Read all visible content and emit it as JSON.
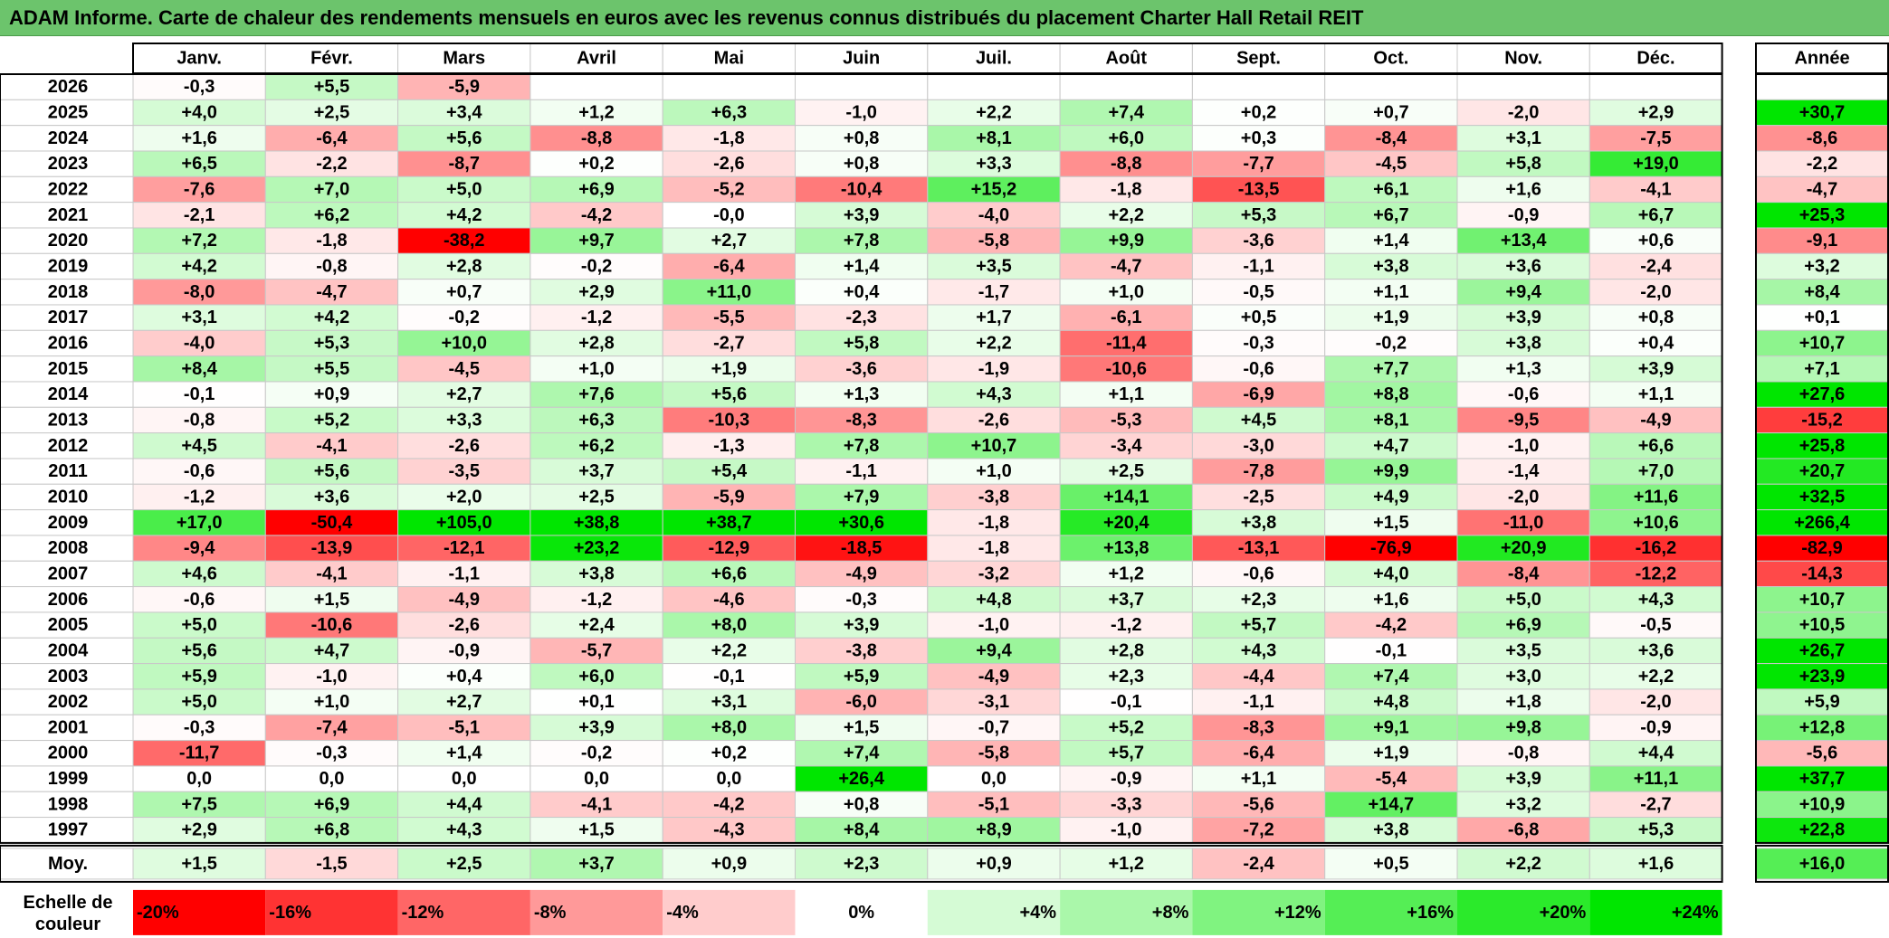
{
  "title": "ADAM Informe. Carte de chaleur des rendements mensuels en euros avec les revenus connus distribués du placement Charter Hall Retail REIT",
  "chart_data": {
    "type": "heatmap",
    "title": "ADAM Informe. Carte de chaleur des rendements mensuels en euros avec les revenus connus distribués du placement Charter Hall Retail REIT",
    "months": [
      "Janv.",
      "Févr.",
      "Mars",
      "Avril",
      "Mai",
      "Juin",
      "Juil.",
      "Août",
      "Sept.",
      "Oct.",
      "Nov.",
      "Déc."
    ],
    "year_header": "Année",
    "rows": [
      {
        "year": "2026",
        "values": [
          "-0,3",
          "+5,5",
          "-5,9",
          "",
          "",
          "",
          "",
          "",
          "",
          "",
          "",
          ""
        ],
        "annual": ""
      },
      {
        "year": "2025",
        "values": [
          "+4,0",
          "+2,5",
          "+3,4",
          "+1,2",
          "+6,3",
          "-1,0",
          "+2,2",
          "+7,4",
          "+0,2",
          "+0,7",
          "-2,0",
          "+2,9"
        ],
        "annual": "+30,7"
      },
      {
        "year": "2024",
        "values": [
          "+1,6",
          "-6,4",
          "+5,6",
          "-8,8",
          "-1,8",
          "+0,8",
          "+8,1",
          "+6,0",
          "+0,3",
          "-8,4",
          "+3,1",
          "-7,5"
        ],
        "annual": "-8,6"
      },
      {
        "year": "2023",
        "values": [
          "+6,5",
          "-2,2",
          "-8,7",
          "+0,2",
          "-2,6",
          "+0,8",
          "+3,3",
          "-8,8",
          "-7,7",
          "-4,5",
          "+5,8",
          "+19,0"
        ],
        "annual": "-2,2"
      },
      {
        "year": "2022",
        "values": [
          "-7,6",
          "+7,0",
          "+5,0",
          "+6,9",
          "-5,2",
          "-10,4",
          "+15,2",
          "-1,8",
          "-13,5",
          "+6,1",
          "+1,6",
          "-4,1"
        ],
        "annual": "-4,7"
      },
      {
        "year": "2021",
        "values": [
          "-2,1",
          "+6,2",
          "+4,2",
          "-4,2",
          "-0,0",
          "+3,9",
          "-4,0",
          "+2,2",
          "+5,3",
          "+6,7",
          "-0,9",
          "+6,7"
        ],
        "annual": "+25,3"
      },
      {
        "year": "2020",
        "values": [
          "+7,2",
          "-1,8",
          "-38,2",
          "+9,7",
          "+2,7",
          "+7,8",
          "-5,8",
          "+9,9",
          "-3,6",
          "+1,4",
          "+13,4",
          "+0,6"
        ],
        "annual": "-9,1"
      },
      {
        "year": "2019",
        "values": [
          "+4,2",
          "-0,8",
          "+2,8",
          "-0,2",
          "-6,4",
          "+1,4",
          "+3,5",
          "-4,7",
          "-1,1",
          "+3,8",
          "+3,6",
          "-2,4"
        ],
        "annual": "+3,2"
      },
      {
        "year": "2018",
        "values": [
          "-8,0",
          "-4,7",
          "+0,7",
          "+2,9",
          "+11,0",
          "+0,4",
          "-1,7",
          "+1,0",
          "-0,5",
          "+1,1",
          "+9,4",
          "-2,0"
        ],
        "annual": "+8,4"
      },
      {
        "year": "2017",
        "values": [
          "+3,1",
          "+4,2",
          "-0,2",
          "-1,2",
          "-5,5",
          "-2,3",
          "+1,7",
          "-6,1",
          "+0,5",
          "+1,9",
          "+3,9",
          "+0,8"
        ],
        "annual": "+0,1"
      },
      {
        "year": "2016",
        "values": [
          "-4,0",
          "+5,3",
          "+10,0",
          "+2,8",
          "-2,7",
          "+5,8",
          "+2,2",
          "-11,4",
          "-0,3",
          "-0,2",
          "+3,8",
          "+0,4"
        ],
        "annual": "+10,7"
      },
      {
        "year": "2015",
        "values": [
          "+8,4",
          "+5,5",
          "-4,5",
          "+1,0",
          "+1,9",
          "-3,6",
          "-1,9",
          "-10,6",
          "-0,6",
          "+7,7",
          "+1,3",
          "+3,9"
        ],
        "annual": "+7,1"
      },
      {
        "year": "2014",
        "values": [
          "-0,1",
          "+0,9",
          "+2,7",
          "+7,6",
          "+5,6",
          "+1,3",
          "+4,3",
          "+1,1",
          "-6,9",
          "+8,8",
          "-0,6",
          "+1,1"
        ],
        "annual": "+27,6"
      },
      {
        "year": "2013",
        "values": [
          "-0,8",
          "+5,2",
          "+3,3",
          "+6,3",
          "-10,3",
          "-8,3",
          "-2,6",
          "-5,3",
          "+4,5",
          "+8,1",
          "-9,5",
          "-4,9"
        ],
        "annual": "-15,2"
      },
      {
        "year": "2012",
        "values": [
          "+4,5",
          "-4,1",
          "-2,6",
          "+6,2",
          "-1,3",
          "+7,8",
          "+10,7",
          "-3,4",
          "-3,0",
          "+4,7",
          "-1,0",
          "+6,6"
        ],
        "annual": "+25,8"
      },
      {
        "year": "2011",
        "values": [
          "-0,6",
          "+5,6",
          "-3,5",
          "+3,7",
          "+5,4",
          "-1,1",
          "+1,0",
          "+2,5",
          "-7,8",
          "+9,9",
          "-1,4",
          "+7,0"
        ],
        "annual": "+20,7"
      },
      {
        "year": "2010",
        "values": [
          "-1,2",
          "+3,6",
          "+2,0",
          "+2,5",
          "-5,9",
          "+7,9",
          "-3,8",
          "+14,1",
          "-2,5",
          "+4,9",
          "-2,0",
          "+11,6"
        ],
        "annual": "+32,5"
      },
      {
        "year": "2009",
        "values": [
          "+17,0",
          "-50,4",
          "+105,0",
          "+38,8",
          "+38,7",
          "+30,6",
          "-1,8",
          "+20,4",
          "+3,8",
          "+1,5",
          "-11,0",
          "+10,6"
        ],
        "annual": "+266,4"
      },
      {
        "year": "2008",
        "values": [
          "-9,4",
          "-13,9",
          "-12,1",
          "+23,2",
          "-12,9",
          "-18,5",
          "-1,8",
          "+13,8",
          "-13,1",
          "-76,9",
          "+20,9",
          "-16,2"
        ],
        "annual": "-82,9"
      },
      {
        "year": "2007",
        "values": [
          "+4,6",
          "-4,1",
          "-1,1",
          "+3,8",
          "+6,6",
          "-4,9",
          "-3,2",
          "+1,2",
          "-0,6",
          "+4,0",
          "-8,4",
          "-12,2"
        ],
        "annual": "-14,3"
      },
      {
        "year": "2006",
        "values": [
          "-0,6",
          "+1,5",
          "-4,9",
          "-1,2",
          "-4,6",
          "-0,3",
          "+4,8",
          "+3,7",
          "+2,3",
          "+1,6",
          "+5,0",
          "+4,3"
        ],
        "annual": "+10,7"
      },
      {
        "year": "2005",
        "values": [
          "+5,0",
          "-10,6",
          "-2,6",
          "+2,4",
          "+8,0",
          "+3,9",
          "-1,0",
          "-1,2",
          "+5,7",
          "-4,2",
          "+6,9",
          "-0,5"
        ],
        "annual": "+10,5"
      },
      {
        "year": "2004",
        "values": [
          "+5,6",
          "+4,7",
          "-0,9",
          "-5,7",
          "+2,2",
          "-3,8",
          "+9,4",
          "+2,8",
          "+4,3",
          "-0,1",
          "+3,5",
          "+3,6"
        ],
        "annual": "+26,7"
      },
      {
        "year": "2003",
        "values": [
          "+5,9",
          "-1,0",
          "+0,4",
          "+6,0",
          "-0,1",
          "+5,9",
          "-4,9",
          "+2,3",
          "-4,4",
          "+7,4",
          "+3,0",
          "+2,2"
        ],
        "annual": "+23,9"
      },
      {
        "year": "2002",
        "values": [
          "+5,0",
          "+1,0",
          "+2,7",
          "+0,1",
          "+3,1",
          "-6,0",
          "-3,1",
          "-0,1",
          "-1,1",
          "+4,8",
          "+1,8",
          "-2,0"
        ],
        "annual": "+5,9"
      },
      {
        "year": "2001",
        "values": [
          "-0,3",
          "-7,4",
          "-5,1",
          "+3,9",
          "+8,0",
          "+1,5",
          "-0,7",
          "+5,2",
          "-8,3",
          "+9,1",
          "+9,8",
          "-0,9"
        ],
        "annual": "+12,8"
      },
      {
        "year": "2000",
        "values": [
          "-11,7",
          "-0,3",
          "+1,4",
          "-0,2",
          "+0,2",
          "+7,4",
          "-5,8",
          "+5,7",
          "-6,4",
          "+1,9",
          "-0,8",
          "+4,4"
        ],
        "annual": "-5,6"
      },
      {
        "year": "1999",
        "values": [
          "0,0",
          "0,0",
          "0,0",
          "0,0",
          "0,0",
          "+26,4",
          "0,0",
          "-0,9",
          "+1,1",
          "-5,4",
          "+3,9",
          "+11,1"
        ],
        "annual": "+37,7"
      },
      {
        "year": "1998",
        "values": [
          "+7,5",
          "+6,9",
          "+4,4",
          "-4,1",
          "-4,2",
          "+0,8",
          "-5,1",
          "-3,3",
          "-5,6",
          "+14,7",
          "+3,2",
          "-2,7"
        ],
        "annual": "+10,9"
      },
      {
        "year": "1997",
        "values": [
          "+2,9",
          "+6,8",
          "+4,3",
          "+1,5",
          "-4,3",
          "+8,4",
          "+8,9",
          "-1,0",
          "-7,2",
          "+3,8",
          "-6,8",
          "+5,3"
        ],
        "annual": "+22,8"
      }
    ],
    "average": {
      "label": "Moy.",
      "values": [
        "+1,5",
        "-1,5",
        "+2,5",
        "+3,7",
        "+0,9",
        "+2,3",
        "+0,9",
        "+1,2",
        "-2,4",
        "+0,5",
        "+2,2",
        "+1,6"
      ],
      "annual": "+16,0"
    },
    "scale": {
      "label_lines": [
        "Echelle de",
        "couleur"
      ],
      "labels": [
        "-20%",
        "-16%",
        "-12%",
        "-8%",
        "-4%",
        "0%",
        "+4%",
        "+8%",
        "+12%",
        "+16%",
        "+20%",
        "+24%"
      ],
      "values": [
        -20,
        -16,
        -12,
        -8,
        -4,
        0,
        4,
        8,
        12,
        16,
        20,
        24
      ]
    },
    "colors": {
      "negative_max": "#ff0000",
      "neutral": "#ffffff",
      "positive_max": "#00e600",
      "title_bg": "#6cc46c"
    }
  }
}
